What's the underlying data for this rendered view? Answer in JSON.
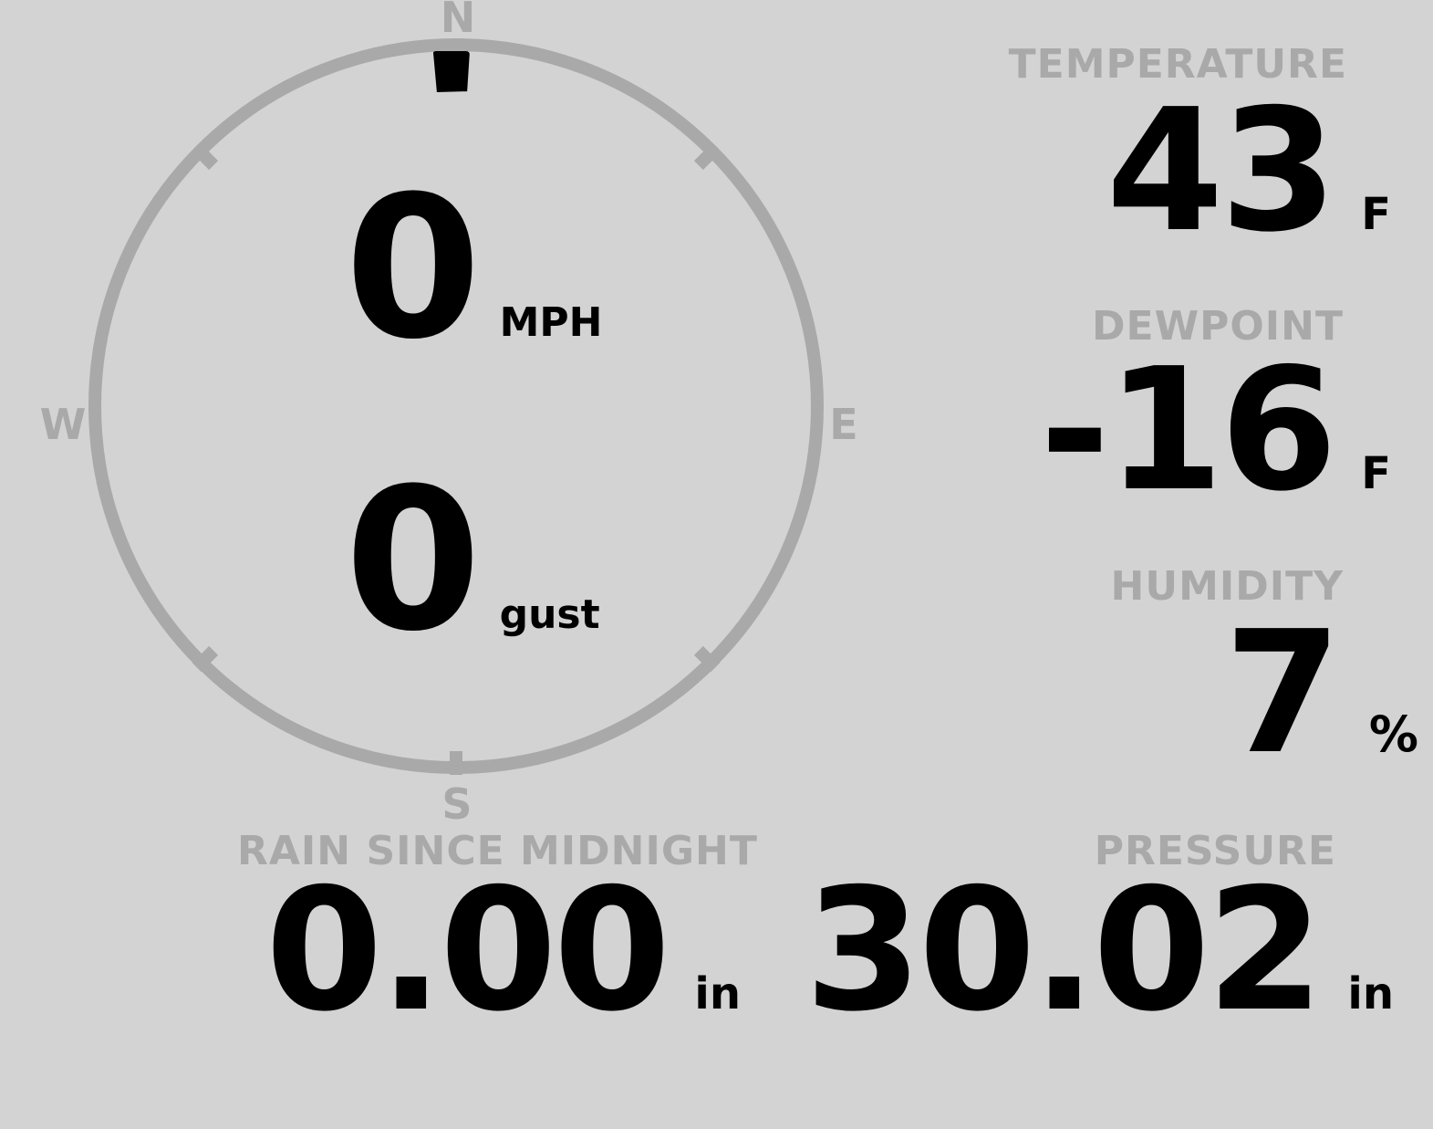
{
  "theme": {
    "background": "#d3d3d3",
    "muted_gray": "#a9a9a9",
    "value_black": "#000000"
  },
  "wind_gauge": {
    "cardinals": {
      "n": "N",
      "e": "E",
      "s": "S",
      "w": "W"
    },
    "direction": "N",
    "speed_value": "0",
    "speed_unit": "MPH",
    "gust_value": "0",
    "gust_unit": "gust"
  },
  "readouts": {
    "temperature": {
      "label": "TEMPERATURE",
      "value": "43",
      "unit": "F"
    },
    "dewpoint": {
      "label": "DEWPOINT",
      "value": "-16",
      "unit": "F"
    },
    "humidity": {
      "label": "HUMIDITY",
      "value": "7",
      "unit": "%"
    },
    "rain": {
      "label": "RAIN SINCE MIDNIGHT",
      "value": "0.00",
      "unit": "in"
    },
    "pressure": {
      "label": "PRESSURE",
      "value": "30.02",
      "unit": "in"
    }
  }
}
